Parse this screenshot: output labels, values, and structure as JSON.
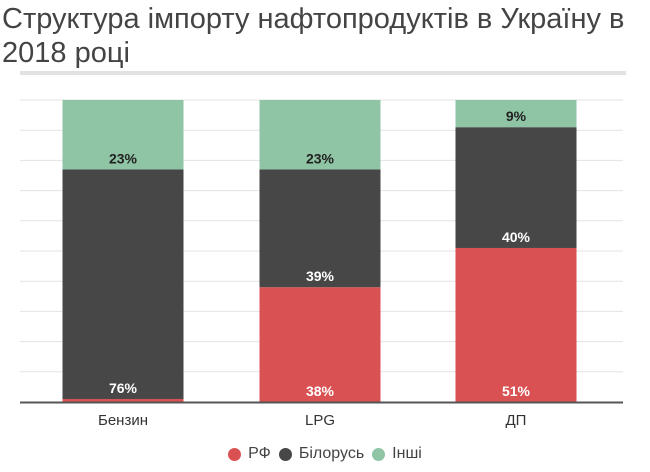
{
  "chart_data": {
    "type": "bar",
    "stacked": true,
    "title": "Структура імпорту нафтопродуктів в Україну в 2018 році",
    "categories": [
      "Бензин",
      "LPG",
      "ДП"
    ],
    "series": [
      {
        "name": "РФ",
        "values": [
          1,
          38,
          51
        ],
        "labels": [
          "",
          "38%",
          "51%"
        ],
        "color": "#d95152"
      },
      {
        "name": "Білорусь",
        "values": [
          76,
          39,
          40
        ],
        "labels": [
          "76%",
          "39%",
          "40%"
        ],
        "color": "#474747"
      },
      {
        "name": "Інші",
        "values": [
          23,
          23,
          9
        ],
        "labels": [
          "23%",
          "23%",
          "9%"
        ],
        "color": "#8fc4a4"
      }
    ],
    "ylim": [
      0,
      100
    ],
    "grid": true,
    "legend": "bottom"
  }
}
